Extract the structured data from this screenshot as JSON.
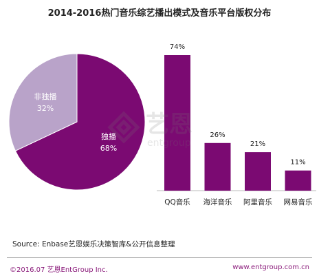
{
  "title": "2014-2016热门音乐综艺播出模式及音乐平台版权分布",
  "source": "Source: Enbase艺恩娱乐决策智库&公开信息整理",
  "footer": {
    "copyright": "©2016.07 艺恩EntGroup Inc.",
    "website": "www.entgroup.com.cn"
  },
  "watermark": {
    "logo_text": "艺恩",
    "sub_text": "entgroup"
  },
  "colors": {
    "primary": "#7b0a72",
    "secondary": "#b9a3c9",
    "accent_text": "#8a1a7a"
  },
  "chart_data": [
    {
      "type": "pie",
      "slices": [
        {
          "name": "独播",
          "value": 68,
          "label": "68%",
          "color": "#7b0a72"
        },
        {
          "name": "非独播",
          "value": 32,
          "label": "32%",
          "color": "#b9a3c9"
        }
      ]
    },
    {
      "type": "bar",
      "categories": [
        "QQ音乐",
        "海洋音乐",
        "阿里音乐",
        "网易音乐"
      ],
      "values": [
        74,
        26,
        21,
        11
      ],
      "value_labels": [
        "74%",
        "26%",
        "21%",
        "11%"
      ],
      "ylim": [
        0,
        74
      ],
      "color": "#7b0a72"
    }
  ]
}
